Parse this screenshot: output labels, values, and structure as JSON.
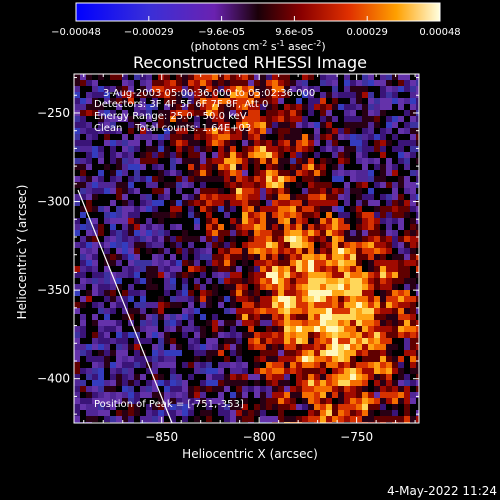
{
  "colorbar": {
    "ticks": [
      "-0.00048",
      "-0.00029",
      "-9.6e-05",
      "9.6e-05",
      "0.00029",
      "0.00048"
    ],
    "unit_text": "(photons cm",
    "unit_exp1": "-2",
    "unit_mid": " s",
    "unit_exp2": "-1",
    "unit_end": " asec",
    "unit_exp3": "-2",
    "unit_close": ")"
  },
  "chart_data": {
    "type": "heatmap",
    "title": "Reconstructed RHESSI Image",
    "xlabel": "Heliocentric X (arcsec)",
    "ylabel": "Heliocentric Y (arcsec)",
    "xlim": [
      -895,
      -718
    ],
    "ylim": [
      -425,
      -228
    ],
    "x_ticks": [
      -850,
      -800,
      -750
    ],
    "y_ticks": [
      -250,
      -300,
      -350,
      -400
    ],
    "x_tick_labels": [
      "−850",
      "−800",
      "−750"
    ],
    "y_tick_labels": [
      "−250",
      "−300",
      "−350",
      "−400"
    ],
    "color_range": [
      -0.00048,
      0.00048
    ],
    "peak": {
      "x": -751,
      "y": -353
    },
    "annotations": [
      "3-Aug-2003 05:00:36.000 to 05:02:36.000",
      "Detectors: 3F 4F 5F 6F 7F 8F, Att 0",
      "Energy Range: 25.0 - 50.0 keV",
      "Clean    Total counts: 1.64E+03"
    ],
    "peak_label": "Position of Peak = [-751,-353]"
  },
  "footer": {
    "date": "4-May-2022 11:24"
  }
}
